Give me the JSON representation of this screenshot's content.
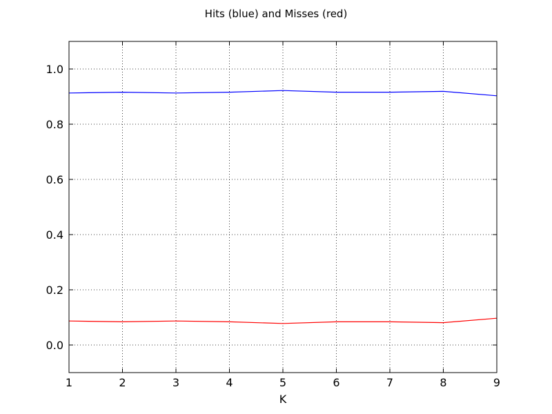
{
  "chart_data": {
    "type": "line",
    "title": "Hits (blue) and Misses (red)",
    "xlabel": "K",
    "ylabel": "",
    "x": [
      1,
      2,
      3,
      4,
      5,
      6,
      7,
      8,
      9
    ],
    "xlim": [
      1,
      9
    ],
    "ylim": [
      -0.1,
      1.1
    ],
    "xticks": [
      1,
      2,
      3,
      4,
      5,
      6,
      7,
      8,
      9
    ],
    "yticks": [
      0.0,
      0.2,
      0.4,
      0.6,
      0.8,
      1.0
    ],
    "xtick_labels": [
      "1",
      "2",
      "3",
      "4",
      "5",
      "6",
      "7",
      "8",
      "9"
    ],
    "ytick_labels": [
      "0.0",
      "0.2",
      "0.4",
      "0.6",
      "0.8",
      "1.0"
    ],
    "grid": true,
    "series": [
      {
        "values": [
          0.913,
          0.916,
          0.913,
          0.916,
          0.922,
          0.916,
          0.916,
          0.919,
          0.903
        ],
        "color": "#0000ff"
      },
      {
        "values": [
          0.087,
          0.084,
          0.087,
          0.084,
          0.078,
          0.084,
          0.084,
          0.081,
          0.097
        ],
        "color": "#ff0000"
      }
    ]
  }
}
